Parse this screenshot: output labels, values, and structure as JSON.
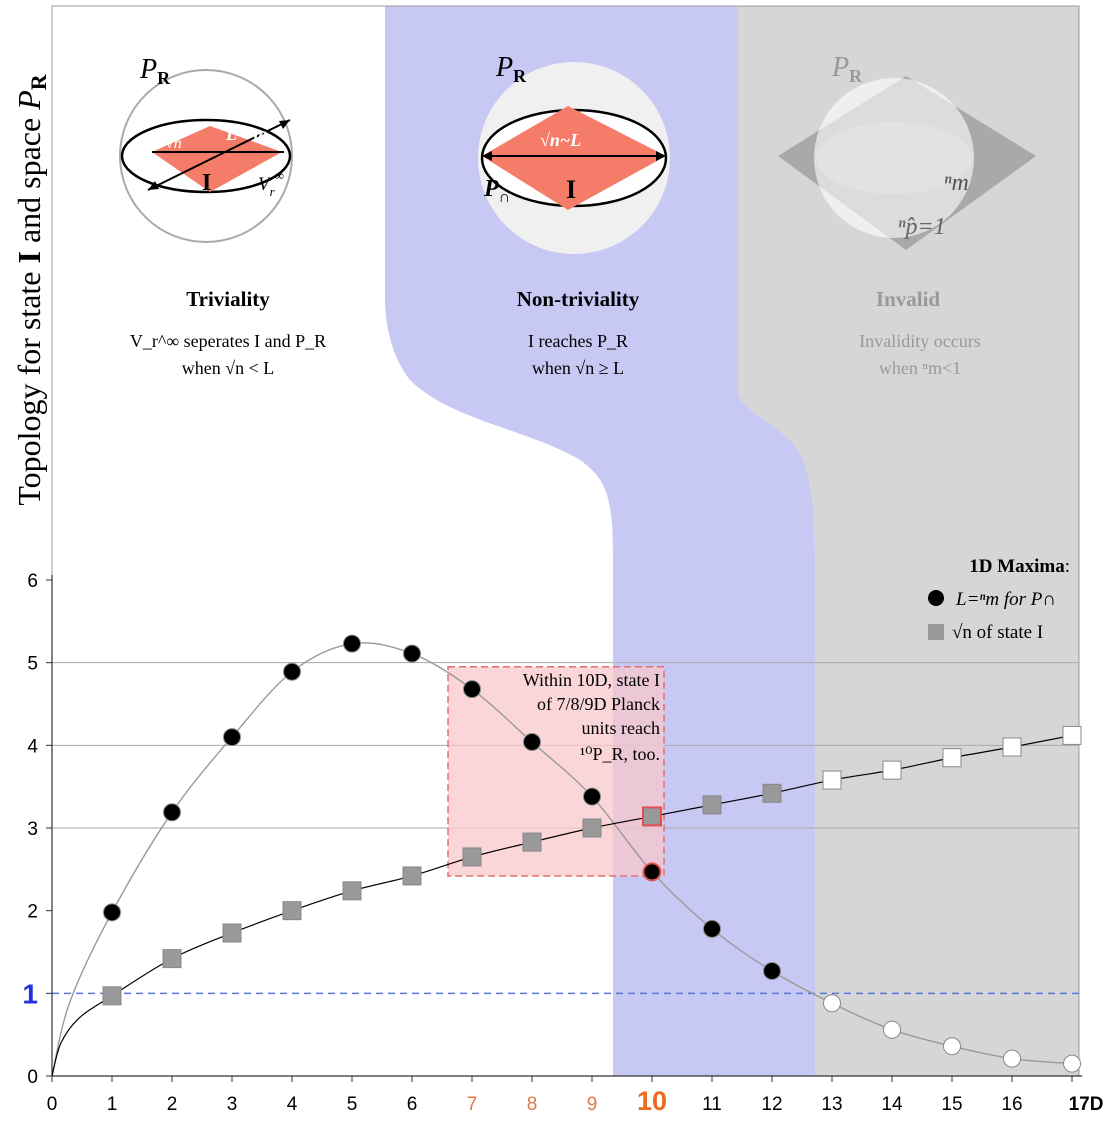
{
  "chart_data": {
    "type": "scatter",
    "ylabel": "Topology for state I and space P_R",
    "ylabel_parts": {
      "prefix": "Topology for state ",
      "state": "I",
      "mid": " and space ",
      "P": "P",
      "sub": "R"
    },
    "xlim": [
      0,
      17
    ],
    "ylim": [
      0,
      6
    ],
    "x_ticks": [
      "0",
      "1",
      "2",
      "3",
      "4",
      "5",
      "6",
      "7",
      "8",
      "9",
      "10",
      "11",
      "12",
      "13",
      "14",
      "15",
      "16",
      "17D"
    ],
    "y_ticks": [
      "0",
      "1",
      "2",
      "3",
      "4",
      "5",
      "6"
    ],
    "highlight_x_ticks": [
      7,
      8,
      9,
      10
    ],
    "reference_line": {
      "y": 1,
      "label": "1"
    },
    "gridlines_y": [
      3,
      4,
      5
    ],
    "regions": [
      {
        "name": "Triviality",
        "x_from": 0,
        "x_to": 9.3
      },
      {
        "name": "Non-triviality",
        "x_from": 9.3,
        "x_to": 12.7
      },
      {
        "name": "Invalid",
        "x_from": 12.7,
        "x_to": 17
      }
    ],
    "legend": {
      "title": "1D Maxima",
      "entries": [
        {
          "marker": "circle",
          "label": "L=ⁿm for P∩"
        },
        {
          "marker": "square",
          "label": "√n of state I"
        }
      ],
      "position": "top-right"
    },
    "series": [
      {
        "name": "L=ⁿm for P∩",
        "marker": "circle",
        "points": [
          [
            1,
            1.98
          ],
          [
            2,
            3.19
          ],
          [
            3,
            4.1
          ],
          [
            4,
            4.89
          ],
          [
            5,
            5.23
          ],
          [
            6,
            5.11
          ],
          [
            7,
            4.68
          ],
          [
            8,
            4.04
          ],
          [
            9,
            3.38
          ],
          [
            10,
            2.47
          ],
          [
            11,
            1.78
          ],
          [
            12,
            1.27
          ],
          [
            13,
            0.88
          ],
          [
            14,
            0.56
          ],
          [
            15,
            0.36
          ],
          [
            16,
            0.21
          ],
          [
            17,
            0.15
          ]
        ]
      },
      {
        "name": "√n of state I",
        "marker": "square",
        "points": [
          [
            1,
            0.97
          ],
          [
            2,
            1.42
          ],
          [
            3,
            1.73
          ],
          [
            4,
            2.0
          ],
          [
            5,
            2.24
          ],
          [
            6,
            2.42
          ],
          [
            7,
            2.65
          ],
          [
            8,
            2.83
          ],
          [
            9,
            3.0
          ],
          [
            10,
            3.14
          ],
          [
            11,
            3.28
          ],
          [
            12,
            3.42
          ],
          [
            13,
            3.58
          ],
          [
            14,
            3.7
          ],
          [
            15,
            3.85
          ],
          [
            16,
            3.98
          ],
          [
            17,
            4.12
          ]
        ]
      }
    ],
    "annotation_box": {
      "x_from": 6.6,
      "x_to": 10.2,
      "y_from": 2.42,
      "y_to": 4.95,
      "lines": [
        "Within 10D, state I",
        "of 7/8/9D Planck",
        "units reach",
        "¹⁰P_R, too."
      ]
    }
  },
  "panels": {
    "triviality": {
      "title": "Triviality",
      "line1": "V_r^∞ seperates I and P_R",
      "line2": "when √n < L",
      "labels": {
        "space": "P",
        "space_sub": "R",
        "state": "I",
        "sqrt": "√n",
        "L": "L=ⁿm",
        "vinf": "V",
        "vinf_sub": "r",
        "vinf_sup": "∞"
      }
    },
    "nontriviality": {
      "title": "Non-triviality",
      "line1": "I reaches P_R",
      "line2": "when √n ≥ L",
      "labels": {
        "space": "P",
        "space_sub": "R",
        "state": "I",
        "sqrtL": "√n~L",
        "pcap": "P",
        "pcap_sub": "∩"
      }
    },
    "invalid": {
      "title": "Invalid",
      "line1": "Invalidity occurs",
      "line2": "when ⁿm<1",
      "labels": {
        "space": "P",
        "space_sub": "R",
        "nm": "ⁿm",
        "np": "ⁿp̂=1"
      }
    }
  },
  "colors": {
    "nontrivial_region": "#c8c8f4",
    "invalid_region": "#d6d6d6",
    "diamond": "#f47c68",
    "annotation_fill": "#f8c8cc",
    "annotation_stroke": "#e07070",
    "ref_line": "#5a78d6",
    "tick_highlight": "#e07848",
    "tick_ten": "#ee6a20",
    "one_label": "#2233dd"
  }
}
